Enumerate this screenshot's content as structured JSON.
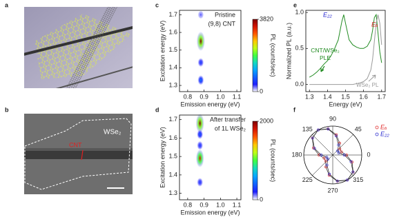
{
  "images": [
    {
      "label": "a"
    },
    {
      "label": "b",
      "annotations": [
        "WSe₂",
        "CNT"
      ]
    }
  ],
  "chart_data": [
    {
      "type": "heatmap",
      "label": "c",
      "xlabel": "Emission energy (eV)",
      "ylabel": "Excitation energy (eV)",
      "xlim": [
        0.75,
        1.125
      ],
      "xticks": [
        0.8,
        0.9,
        {
          "value": 1,
          "label": "1.0"
        },
        1.1
      ],
      "ylim": [
        1.265,
        1.725
      ],
      "yticks": [
        1.3,
        1.4,
        1.5,
        1.6,
        1.7
      ],
      "annotations": [
        "Pristine",
        "(9,8) CNT"
      ],
      "clabel": "PL (counts/sec)",
      "clim": [
        0,
        3820
      ],
      "cticks": [
        0,
        3820
      ],
      "spots": {
        "x": [
          0.88,
          0.88,
          0.88,
          0.88
        ],
        "y": [
          1.55,
          1.43,
          1.33,
          1.7
        ],
        "values": [
          3820,
          600,
          900,
          300
        ]
      }
    },
    {
      "type": "heatmap",
      "label": "d",
      "xlabel": "Emission energy (eV)",
      "ylabel": "Excitation energy (eV)",
      "xlim": [
        0.75,
        1.125
      ],
      "xticks": [
        0.8,
        0.9,
        {
          "value": 1,
          "label": "1.0"
        },
        1.1
      ],
      "ylim": [
        1.265,
        1.725
      ],
      "yticks": [
        1.3,
        1.4,
        1.5,
        1.6,
        1.7
      ],
      "annotations": [
        "After transfer",
        "of 1L WSe₂"
      ],
      "clabel": "PL (counts/sec)",
      "clim": [
        0,
        2000
      ],
      "cticks": [
        0,
        2000
      ],
      "spots": {
        "x": [
          0.875,
          0.875,
          0.875,
          0.875,
          0.875
        ],
        "y": [
          1.68,
          1.49,
          1.56,
          1.62,
          1.36
        ],
        "values": [
          2000,
          1800,
          300,
          400,
          300
        ]
      }
    },
    {
      "type": "line",
      "label": "e",
      "xlabel": "Energy (eV)",
      "ylabel": "Normalized PL (a.u.)",
      "xlim": [
        1.28,
        1.72
      ],
      "xticks": [
        1.3,
        1.4,
        1.5,
        1.6,
        1.7
      ],
      "ylim": [
        -0.1,
        1.03
      ],
      "yticks": [
        {
          "value": 0,
          "label": "0.0"
        },
        0.5,
        {
          "value": 1,
          "label": "1.0"
        }
      ],
      "annotations": [
        {
          "text": "E₂₂",
          "color": "#2a2ad0"
        },
        {
          "text": "Eₐ",
          "color": "#d02020"
        }
      ],
      "x": [
        1.3,
        1.32,
        1.34,
        1.36,
        1.38,
        1.4,
        1.42,
        1.44,
        1.46,
        1.48,
        1.49,
        1.5,
        1.52,
        1.54,
        1.56,
        1.58,
        1.6,
        1.62,
        1.64,
        1.65,
        1.66,
        1.67,
        1.68,
        1.69,
        1.7
      ],
      "series": [
        {
          "name": "CNT/WSe₂ PLE",
          "color": "#1f8a1f",
          "values": [
            0.1,
            0.13,
            0.17,
            0.22,
            0.28,
            0.33,
            0.4,
            0.5,
            0.62,
            0.88,
            0.97,
            0.85,
            0.62,
            0.55,
            0.52,
            0.5,
            0.5,
            0.53,
            0.62,
            0.75,
            0.93,
            0.97,
            0.72,
            0.45,
            0.3
          ]
        },
        {
          "name": "WSe₂ PL",
          "color": "#9a9a9a",
          "values": [
            0,
            0,
            0,
            0,
            0,
            0,
            0,
            0,
            0,
            0,
            0,
            0,
            0,
            0,
            0.01,
            0.02,
            0.04,
            0.08,
            0.2,
            0.35,
            0.6,
            0.85,
            0.97,
            0.85,
            0.55
          ]
        }
      ]
    },
    {
      "type": "polar",
      "label": "f",
      "legend": "upper right",
      "rlim": [
        0,
        1
      ],
      "angleticks": [
        0,
        45,
        90,
        135,
        180,
        225,
        270,
        315
      ],
      "theta": [
        0,
        20,
        40,
        60,
        80,
        100,
        120,
        140,
        160,
        180,
        200,
        220,
        240,
        260,
        280,
        300,
        320,
        340
      ],
      "series": [
        {
          "name": "Eₐ",
          "color": "#e03030",
          "values": [
            0.475,
            0.32,
            0.32,
            0.475,
            0.71,
            0.92,
            1.0,
            0.92,
            0.71,
            0.475,
            0.32,
            0.32,
            0.475,
            0.71,
            0.92,
            1.0,
            0.92,
            0.71
          ]
        },
        {
          "name": "E₂₂",
          "color": "#3030d0",
          "values": [
            0.4,
            0.22,
            0.22,
            0.4,
            0.67,
            0.91,
            1.0,
            0.91,
            0.67,
            0.4,
            0.22,
            0.22,
            0.4,
            0.67,
            0.91,
            1.0,
            0.91,
            0.67
          ]
        }
      ]
    }
  ]
}
